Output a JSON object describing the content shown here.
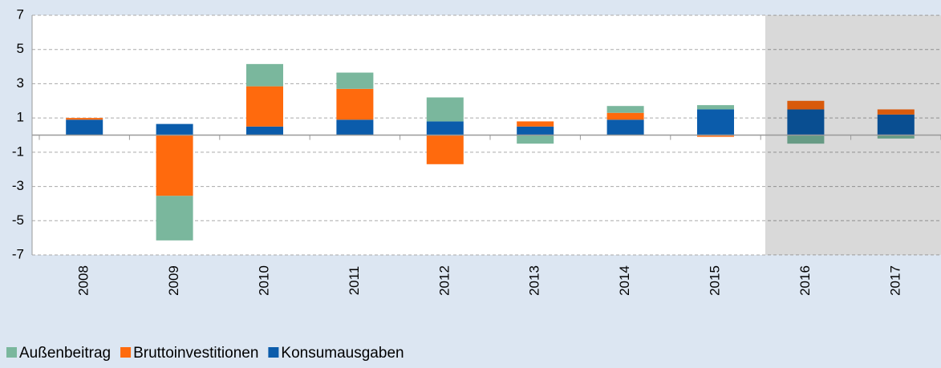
{
  "chart_data": {
    "type": "bar",
    "stacked": true,
    "categories": [
      "2008",
      "2009",
      "2010",
      "2011",
      "2012",
      "2013",
      "2014",
      "2015",
      "2016",
      "2017"
    ],
    "series": [
      {
        "name": "Außenbeitrag",
        "color": "#7ab79d",
        "values": [
          0,
          -2.6,
          1.3,
          0.95,
          1.4,
          -0.5,
          0.4,
          0.25,
          -0.5,
          -0.2
        ]
      },
      {
        "name": "Bruttoinvestitionen",
        "color": "#ff6a0d",
        "values": [
          0.1,
          -3.55,
          2.35,
          1.8,
          -1.7,
          0.3,
          0.4,
          -0.1,
          0.5,
          0.3
        ]
      },
      {
        "name": "Konsumausgaben",
        "color": "#0b5cab",
        "values": [
          0.9,
          0.65,
          0.5,
          0.9,
          0.8,
          0.5,
          0.9,
          1.5,
          1.5,
          1.2
        ]
      }
    ],
    "ylim": [
      -7,
      7
    ],
    "yticks": [
      -7,
      -5,
      -3,
      -1,
      1,
      3,
      5,
      7
    ],
    "grid": true,
    "legend": "bottom-left"
  }
}
